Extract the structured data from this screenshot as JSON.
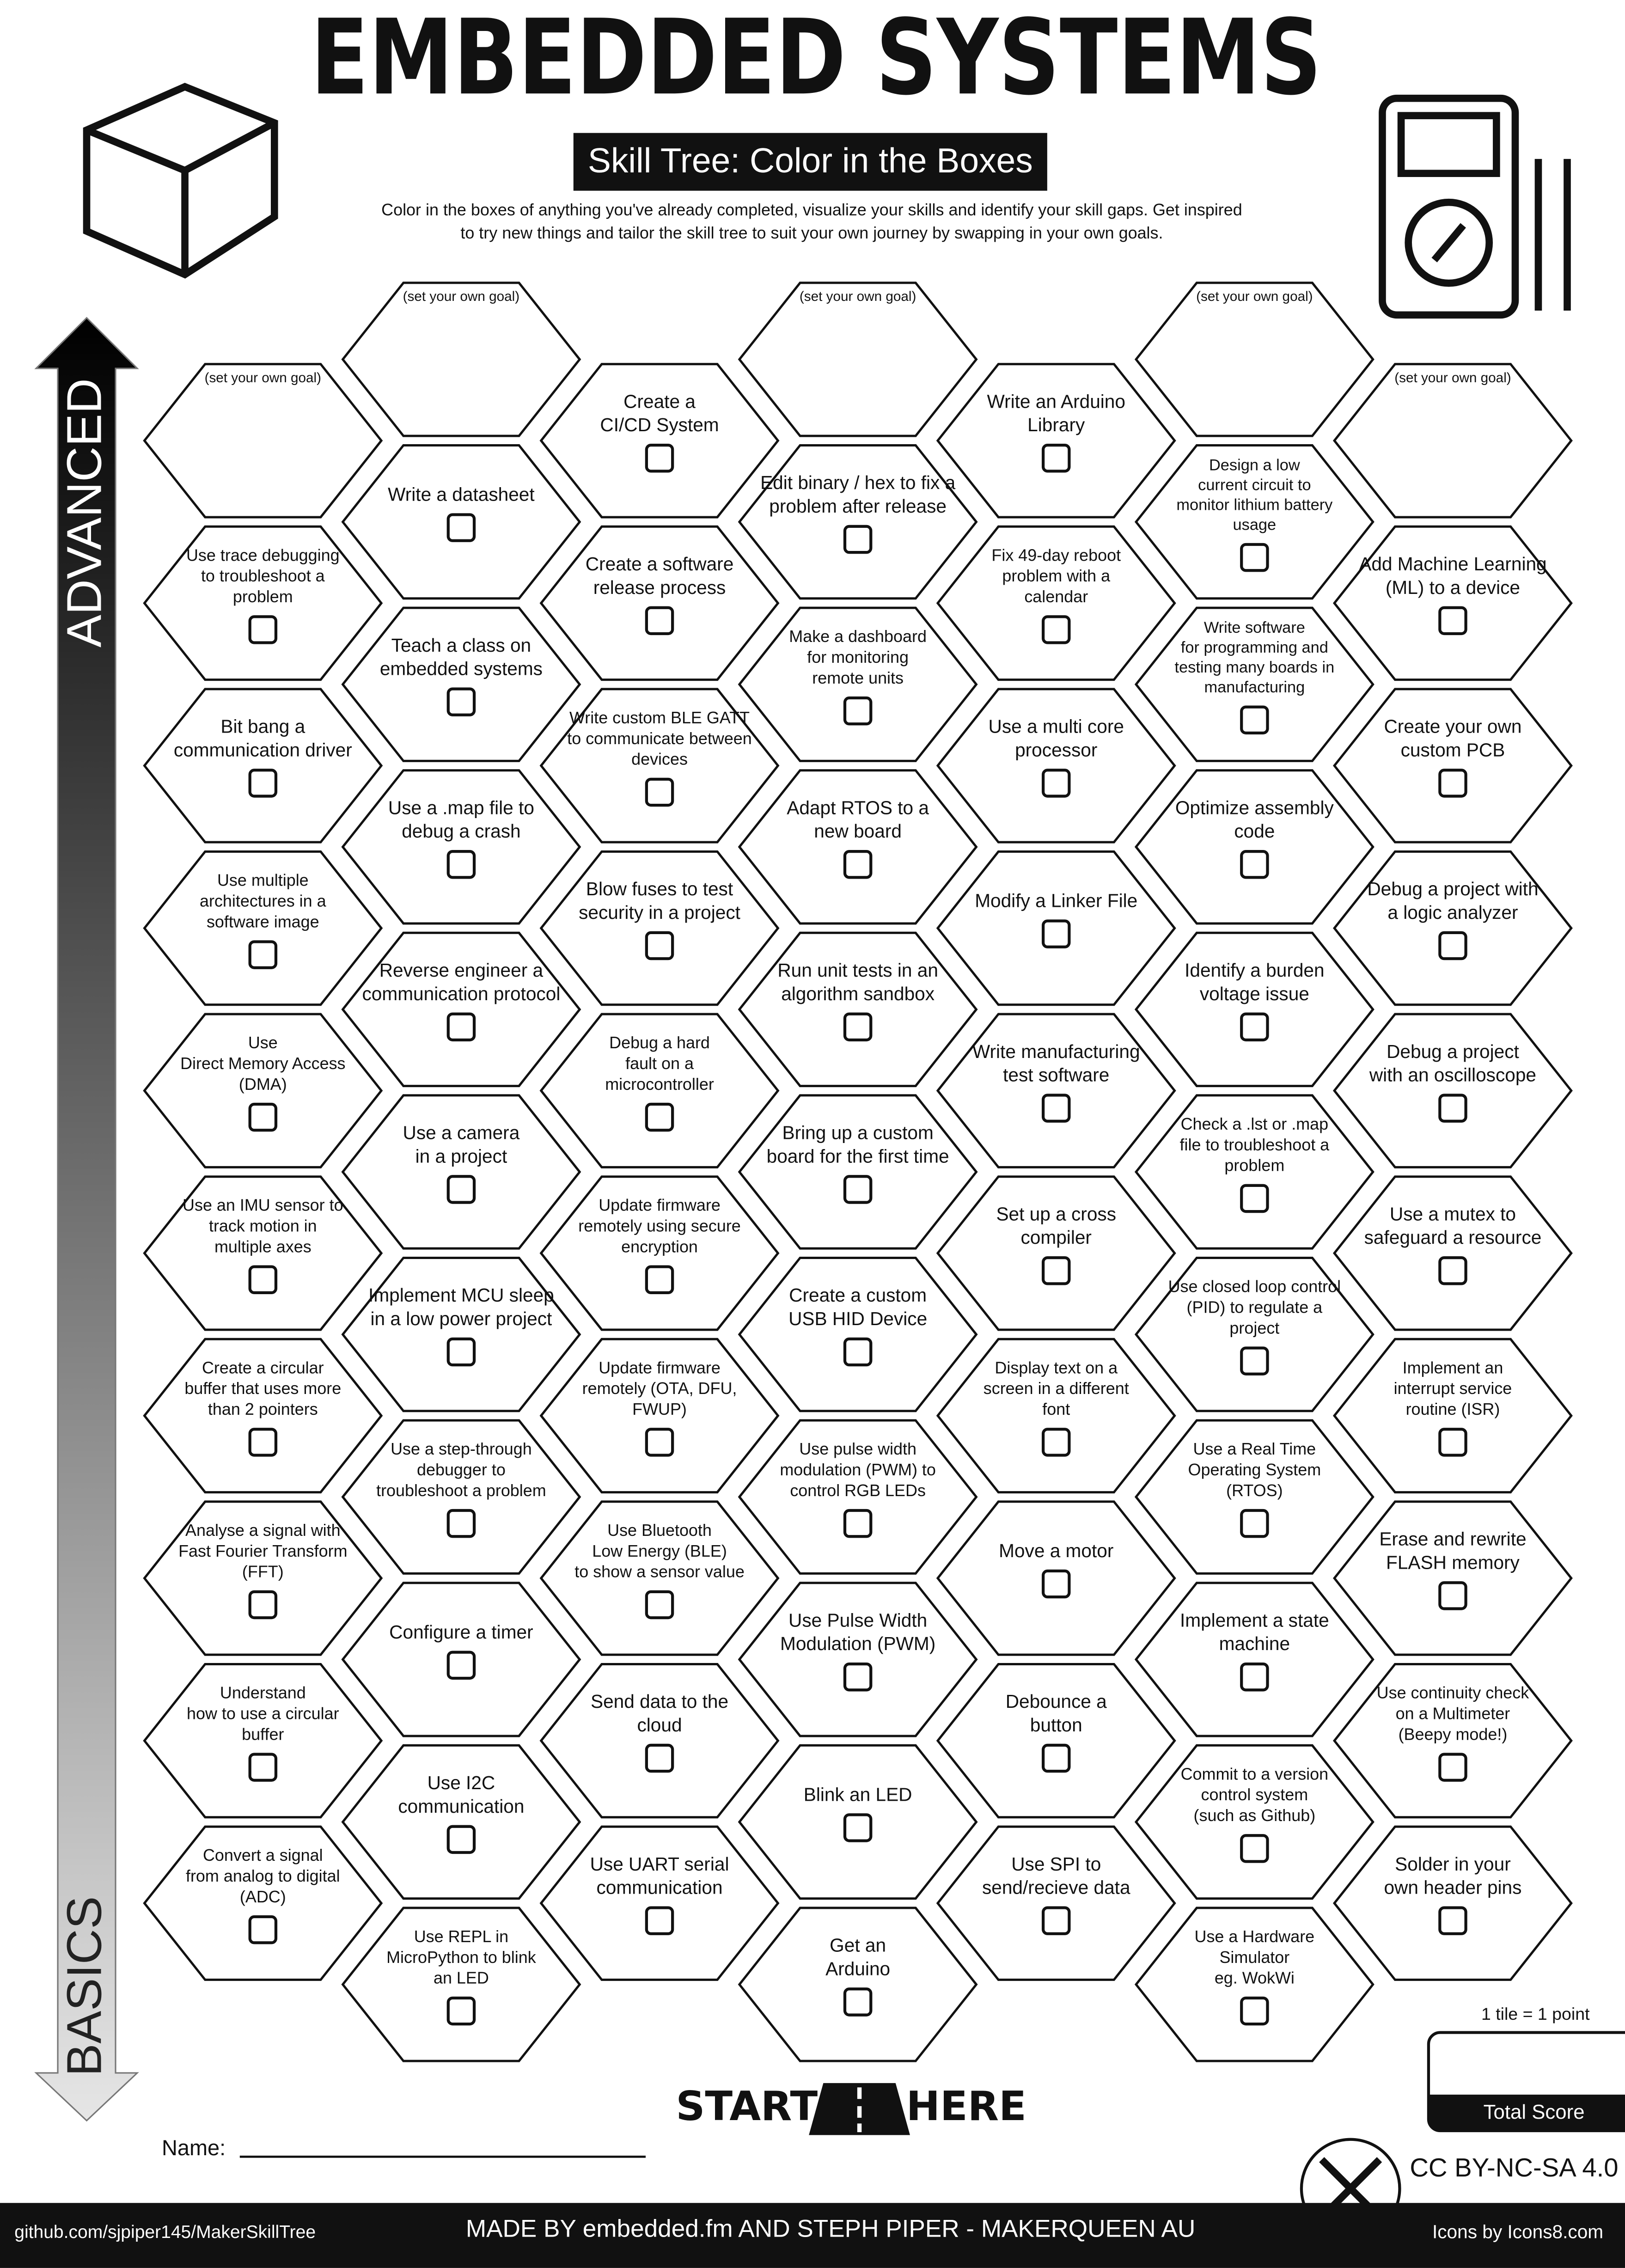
{
  "header": {
    "title": "EMBEDDED SYSTEMS",
    "subtitle": "Skill Tree: Color in the Boxes",
    "intro": [
      "Color in the boxes of anything you've already completed, visualize your skills and identify your skill gaps.  Get inspired",
      "to try new things and tailor the skill tree to suit your own journey by swapping in your own goals."
    ]
  },
  "axis": {
    "top": "ADVANCED",
    "bottom": "BASICS"
  },
  "columns": [
    [
      {
        "lines": [
          "(set your own goal)"
        ],
        "goal": true
      },
      {
        "lines": [
          "Use trace debugging",
          "to troubleshoot a",
          "problem"
        ]
      },
      {
        "lines": [
          "Bit bang a",
          "communication driver"
        ]
      },
      {
        "lines": [
          "Use multiple",
          "architectures in a",
          "software image"
        ]
      },
      {
        "lines": [
          "Use",
          "Direct Memory Access",
          "(DMA)"
        ]
      },
      {
        "lines": [
          "Use an IMU sensor to",
          "track motion in",
          "multiple axes"
        ]
      },
      {
        "lines": [
          "Create a circular",
          "buffer that uses more",
          "than 2 pointers"
        ]
      },
      {
        "lines": [
          "Analyse a signal with",
          "Fast Fourier Transform",
          "(FFT)"
        ]
      },
      {
        "lines": [
          "Understand",
          "how to use a circular",
          "buffer"
        ]
      },
      {
        "lines": [
          "Convert a signal",
          "from analog to digital",
          "(ADC)"
        ]
      }
    ],
    [
      {
        "lines": [
          "(set your own goal)"
        ],
        "goal": true
      },
      {
        "lines": [
          "Write a datasheet"
        ]
      },
      {
        "lines": [
          "Teach a class on",
          "embedded systems"
        ]
      },
      {
        "lines": [
          "Use a .map file to",
          "debug a crash"
        ]
      },
      {
        "lines": [
          "Reverse engineer a",
          "communication protocol"
        ]
      },
      {
        "lines": [
          "Use a camera",
          "in a project"
        ]
      },
      {
        "lines": [
          "Implement MCU sleep",
          "in a low power project"
        ]
      },
      {
        "lines": [
          "Use a step-through",
          "debugger to",
          "troubleshoot a problem"
        ]
      },
      {
        "lines": [
          "Configure a timer"
        ]
      },
      {
        "lines": [
          "Use I2C",
          "communication"
        ]
      },
      {
        "lines": [
          "Use REPL in",
          "MicroPython to blink",
          "an LED"
        ]
      }
    ],
    [
      {
        "lines": [
          "Create a",
          "CI/CD System"
        ]
      },
      {
        "lines": [
          "Create a software",
          "release process"
        ]
      },
      {
        "lines": [
          "Write custom BLE GATT",
          "to communicate between",
          "devices"
        ]
      },
      {
        "lines": [
          "Blow fuses to test",
          "security in a project"
        ]
      },
      {
        "lines": [
          "Debug a hard",
          "fault on a",
          "microcontroller"
        ]
      },
      {
        "lines": [
          "Update firmware",
          "remotely using secure",
          "encryption"
        ]
      },
      {
        "lines": [
          "Update firmware",
          "remotely (OTA, DFU,",
          "FWUP)"
        ]
      },
      {
        "lines": [
          "Use Bluetooth",
          "Low Energy (BLE)",
          "to show a sensor value"
        ]
      },
      {
        "lines": [
          "Send data to the",
          "cloud"
        ]
      },
      {
        "lines": [
          "Use UART serial",
          "communication"
        ]
      }
    ],
    [
      {
        "lines": [
          "(set your own goal)"
        ],
        "goal": true
      },
      {
        "lines": [
          "Edit binary / hex to fix a",
          "problem after release"
        ]
      },
      {
        "lines": [
          "Make a dashboard",
          "for monitoring",
          "remote units"
        ]
      },
      {
        "lines": [
          "Adapt RTOS to a",
          "new board"
        ]
      },
      {
        "lines": [
          "Run unit tests in an",
          "algorithm sandbox"
        ]
      },
      {
        "lines": [
          "Bring up a custom",
          "board for the first time"
        ]
      },
      {
        "lines": [
          "Create a custom",
          "USB HID Device"
        ]
      },
      {
        "lines": [
          "Use pulse width",
          "modulation (PWM) to",
          "control RGB LEDs"
        ]
      },
      {
        "lines": [
          "Use Pulse Width",
          "Modulation (PWM)"
        ]
      },
      {
        "lines": [
          "Blink an LED"
        ]
      },
      {
        "lines": [
          "Get an",
          "Arduino"
        ]
      }
    ],
    [
      {
        "lines": [
          "Write an Arduino",
          "Library"
        ]
      },
      {
        "lines": [
          "Fix 49-day reboot",
          "problem with a",
          "calendar"
        ]
      },
      {
        "lines": [
          "Use a multi core",
          "processor"
        ]
      },
      {
        "lines": [
          "Modify a Linker File"
        ]
      },
      {
        "lines": [
          "Write manufacturing",
          "test software"
        ]
      },
      {
        "lines": [
          "Set up a cross",
          "compiler"
        ]
      },
      {
        "lines": [
          "Display text on a",
          "screen in a different",
          "font"
        ]
      },
      {
        "lines": [
          "Move a motor"
        ]
      },
      {
        "lines": [
          "Debounce a",
          "button"
        ]
      },
      {
        "lines": [
          "Use SPI to",
          "send/recieve data"
        ]
      }
    ],
    [
      {
        "lines": [
          "(set your own goal)"
        ],
        "goal": true
      },
      {
        "lines": [
          "Design a low",
          "current circuit to",
          "monitor lithium battery",
          "usage"
        ]
      },
      {
        "lines": [
          "Write software",
          "for programming and",
          "testing many boards in",
          "manufacturing"
        ]
      },
      {
        "lines": [
          "Optimize assembly",
          "code"
        ]
      },
      {
        "lines": [
          "Identify a burden",
          "voltage issue"
        ]
      },
      {
        "lines": [
          "Check a .lst or .map",
          "file to troubleshoot a",
          "problem"
        ]
      },
      {
        "lines": [
          "Use closed loop control",
          "(PID) to regulate a",
          "project"
        ]
      },
      {
        "lines": [
          "Use a Real Time",
          "Operating System",
          "(RTOS)"
        ]
      },
      {
        "lines": [
          "Implement a state",
          "machine"
        ]
      },
      {
        "lines": [
          "Commit to a version",
          "control system",
          "(such as Github)"
        ]
      },
      {
        "lines": [
          "Use a Hardware",
          "Simulator",
          "eg. WokWi"
        ]
      }
    ],
    [
      {
        "lines": [
          "(set your own goal)"
        ],
        "goal": true
      },
      {
        "lines": [
          "Add Machine Learning",
          "(ML) to a device"
        ]
      },
      {
        "lines": [
          "Create your own",
          "custom PCB"
        ]
      },
      {
        "lines": [
          "Debug a project with",
          "a logic analyzer"
        ]
      },
      {
        "lines": [
          "Debug a project",
          "with an oscilloscope"
        ]
      },
      {
        "lines": [
          "Use a mutex to",
          "safeguard a resource"
        ]
      },
      {
        "lines": [
          "Implement an",
          "interrupt service",
          "routine (ISR)"
        ]
      },
      {
        "lines": [
          "Erase and rewrite",
          "FLASH memory"
        ]
      },
      {
        "lines": [
          "Use continuity check",
          "on a Multimeter",
          "(Beepy mode!)"
        ]
      },
      {
        "lines": [
          "Solder in your",
          "own header pins"
        ]
      }
    ]
  ],
  "start": {
    "left": "START",
    "right": "HERE"
  },
  "name_label": "Name:",
  "score": {
    "note": "1 tile = 1 point",
    "label": "Total Score"
  },
  "license": "CC BY-NC-SA 4.0",
  "footer": {
    "left": "github.com/sjpiper145/MakerSkillTree",
    "center": "MADE BY embedded.fm AND STEPH PIPER  -  MAKERQUEEN AU",
    "right": "Icons by Icons8.com"
  }
}
